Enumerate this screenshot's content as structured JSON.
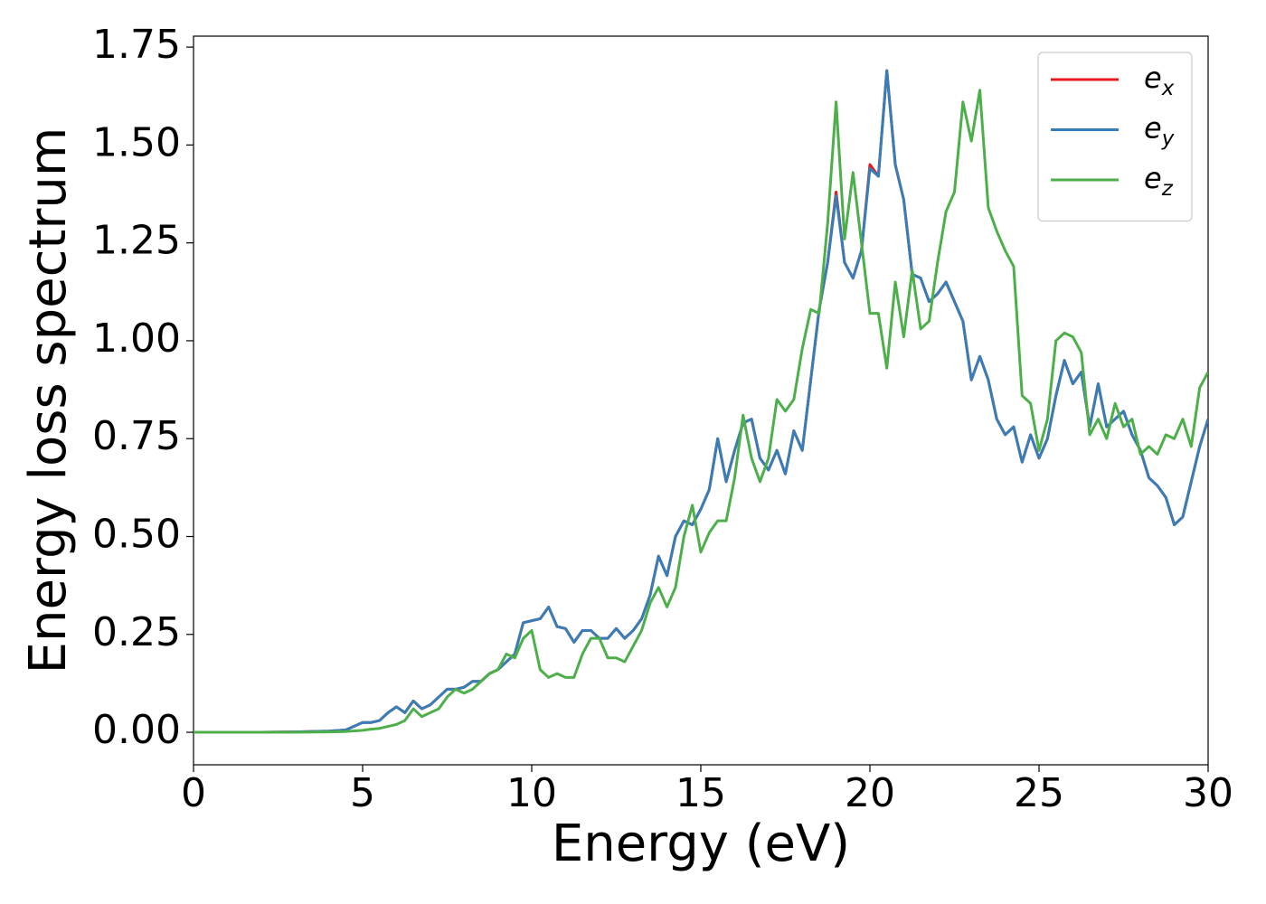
{
  "chart_data": {
    "type": "line",
    "xlabel": "Energy (eV)",
    "ylabel": "Energy loss spectrum",
    "xlim": [
      0,
      30
    ],
    "ylim": [
      -0.083,
      1.778
    ],
    "xticks": [
      0,
      5,
      10,
      15,
      20,
      25,
      30
    ],
    "yticks": [
      {
        "value": 0,
        "label": "0.00"
      },
      {
        "value": 0.25,
        "label": "0.25"
      },
      {
        "value": 0.5,
        "label": "0.50"
      },
      {
        "value": 0.75,
        "label": "0.75"
      },
      {
        "value": 1,
        "label": "1.00"
      },
      {
        "value": 1.25,
        "label": "1.25"
      },
      {
        "value": 1.5,
        "label": "1.50"
      },
      {
        "value": 1.75,
        "label": "1.75"
      }
    ],
    "legend": "upper right",
    "x": [
      0,
      1,
      2,
      3,
      4,
      4.5,
      5,
      5.25,
      5.5,
      5.75,
      6,
      6.25,
      6.5,
      6.75,
      7,
      7.25,
      7.5,
      7.75,
      8,
      8.25,
      8.5,
      8.75,
      9,
      9.25,
      9.5,
      9.75,
      10,
      10.25,
      10.5,
      10.75,
      11,
      11.25,
      11.5,
      11.75,
      12,
      12.25,
      12.5,
      12.75,
      13,
      13.25,
      13.5,
      13.75,
      14,
      14.25,
      14.5,
      14.75,
      15,
      15.25,
      15.5,
      15.75,
      16,
      16.25,
      16.5,
      16.75,
      17,
      17.25,
      17.5,
      17.75,
      18,
      18.25,
      18.5,
      18.75,
      19,
      19.25,
      19.5,
      19.75,
      20,
      20.25,
      20.5,
      20.75,
      21,
      21.25,
      21.5,
      21.75,
      22,
      22.25,
      22.5,
      22.75,
      23,
      23.25,
      23.5,
      23.75,
      24,
      24.25,
      24.5,
      24.75,
      25,
      25.25,
      25.5,
      25.75,
      26,
      26.25,
      26.5,
      26.75,
      27,
      27.25,
      27.5,
      27.75,
      28,
      28.25,
      28.5,
      28.75,
      29,
      29.25,
      29.5,
      29.75,
      30
    ],
    "series": [
      {
        "name": "e_x",
        "color": "#e41a1c",
        "values": [
          0,
          0,
          0,
          0.001,
          0.003,
          0.006,
          0.025,
          0.025,
          0.03,
          0.05,
          0.065,
          0.05,
          0.08,
          0.06,
          0.07,
          0.09,
          0.11,
          0.11,
          0.115,
          0.13,
          0.13,
          0.15,
          0.16,
          0.18,
          0.2,
          0.28,
          0.285,
          0.29,
          0.32,
          0.27,
          0.265,
          0.23,
          0.26,
          0.26,
          0.24,
          0.24,
          0.265,
          0.24,
          0.26,
          0.29,
          0.35,
          0.45,
          0.4,
          0.5,
          0.54,
          0.53,
          0.57,
          0.62,
          0.75,
          0.64,
          0.72,
          0.79,
          0.8,
          0.7,
          0.67,
          0.72,
          0.66,
          0.77,
          0.72,
          0.9,
          1.08,
          1.2,
          1.38,
          1.2,
          1.16,
          1.23,
          1.45,
          1.42,
          1.69,
          1.45,
          1.36,
          1.17,
          1.16,
          1.1,
          1.12,
          1.15,
          1.1,
          1.05,
          0.9,
          0.96,
          0.9,
          0.8,
          0.76,
          0.78,
          0.69,
          0.76,
          0.7,
          0.75,
          0.86,
          0.95,
          0.89,
          0.92,
          0.78,
          0.89,
          0.78,
          0.8,
          0.82,
          0.76,
          0.72,
          0.65,
          0.63,
          0.6,
          0.53,
          0.55,
          0.64,
          0.73,
          0.8
        ]
      },
      {
        "name": "e_y",
        "color": "#377eb8",
        "values": [
          0,
          0,
          0,
          0.001,
          0.003,
          0.006,
          0.025,
          0.025,
          0.03,
          0.05,
          0.065,
          0.05,
          0.08,
          0.06,
          0.07,
          0.09,
          0.11,
          0.11,
          0.115,
          0.13,
          0.13,
          0.15,
          0.16,
          0.18,
          0.2,
          0.28,
          0.285,
          0.29,
          0.32,
          0.27,
          0.265,
          0.23,
          0.26,
          0.26,
          0.24,
          0.24,
          0.265,
          0.24,
          0.26,
          0.29,
          0.35,
          0.45,
          0.4,
          0.5,
          0.54,
          0.53,
          0.57,
          0.62,
          0.75,
          0.64,
          0.72,
          0.79,
          0.8,
          0.7,
          0.67,
          0.72,
          0.66,
          0.77,
          0.72,
          0.9,
          1.08,
          1.2,
          1.37,
          1.2,
          1.16,
          1.23,
          1.44,
          1.42,
          1.69,
          1.45,
          1.36,
          1.17,
          1.16,
          1.1,
          1.12,
          1.15,
          1.1,
          1.05,
          0.9,
          0.96,
          0.9,
          0.8,
          0.76,
          0.78,
          0.69,
          0.76,
          0.7,
          0.75,
          0.86,
          0.95,
          0.89,
          0.92,
          0.78,
          0.89,
          0.78,
          0.8,
          0.82,
          0.76,
          0.72,
          0.65,
          0.63,
          0.6,
          0.53,
          0.55,
          0.64,
          0.73,
          0.8
        ]
      },
      {
        "name": "e_z",
        "color": "#4daf4a",
        "values": [
          0,
          0,
          0,
          0,
          0.001,
          0.002,
          0.005,
          0.008,
          0.01,
          0.015,
          0.02,
          0.03,
          0.06,
          0.04,
          0.05,
          0.06,
          0.09,
          0.11,
          0.1,
          0.11,
          0.13,
          0.15,
          0.16,
          0.2,
          0.19,
          0.24,
          0.26,
          0.16,
          0.14,
          0.15,
          0.14,
          0.14,
          0.2,
          0.24,
          0.24,
          0.19,
          0.19,
          0.18,
          0.22,
          0.26,
          0.33,
          0.37,
          0.32,
          0.37,
          0.5,
          0.58,
          0.46,
          0.51,
          0.54,
          0.54,
          0.65,
          0.81,
          0.7,
          0.64,
          0.7,
          0.85,
          0.82,
          0.85,
          0.98,
          1.08,
          1.07,
          1.3,
          1.61,
          1.26,
          1.43,
          1.25,
          1.07,
          1.07,
          0.93,
          1.15,
          1.01,
          1.18,
          1.03,
          1.05,
          1.2,
          1.33,
          1.38,
          1.61,
          1.51,
          1.64,
          1.34,
          1.28,
          1.23,
          1.19,
          0.86,
          0.84,
          0.72,
          0.8,
          1,
          1.02,
          1.01,
          0.97,
          0.76,
          0.8,
          0.75,
          0.84,
          0.78,
          0.8,
          0.71,
          0.73,
          0.71,
          0.76,
          0.75,
          0.8,
          0.73,
          0.88,
          0.92
        ]
      }
    ]
  }
}
